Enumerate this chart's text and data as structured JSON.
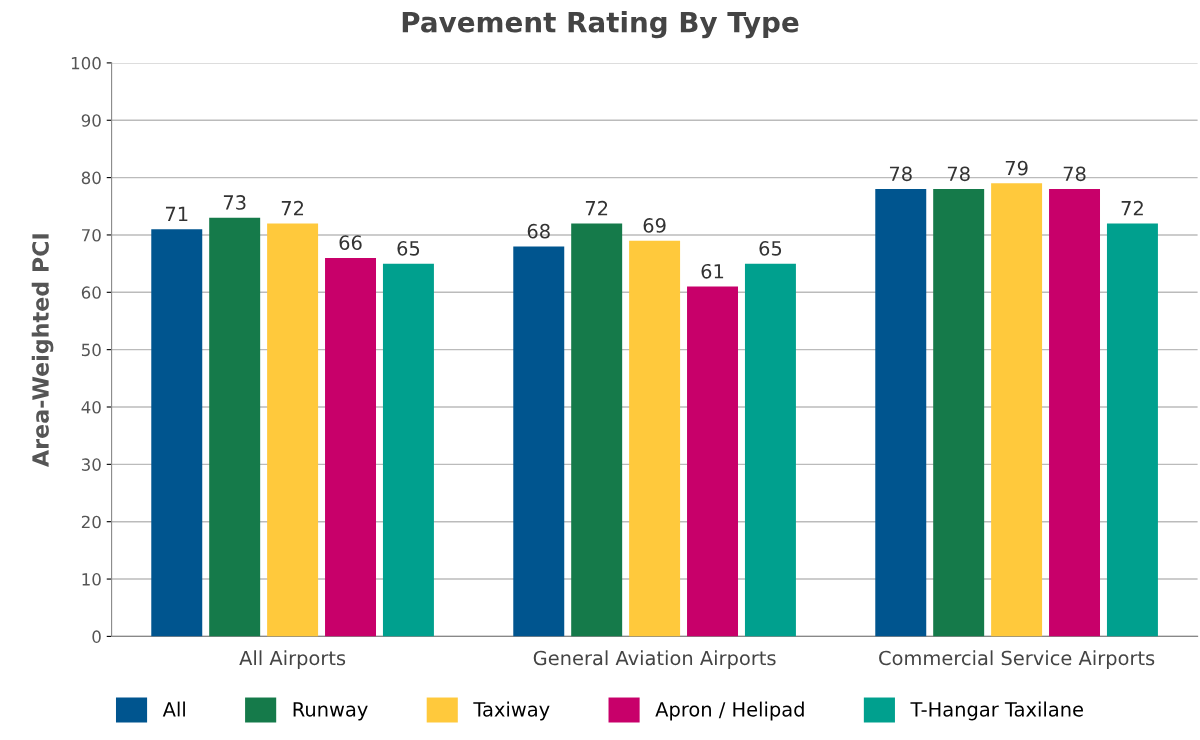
{
  "chart_data": {
    "type": "bar",
    "title": "Pavement Rating By Type",
    "ylabel": "Area-Weighted PCI",
    "categories": [
      "All Airports",
      "General Aviation Airports",
      "Commercial Service Airports"
    ],
    "series": [
      {
        "name": "All",
        "color": "#00558f",
        "values": [
          71,
          68,
          78
        ]
      },
      {
        "name": "Runway",
        "color": "#157a4a",
        "values": [
          73,
          72,
          78
        ]
      },
      {
        "name": "Taxiway",
        "color": "#ffc93c",
        "values": [
          72,
          69,
          79
        ]
      },
      {
        "name": "Apron / Helipad",
        "color": "#c8006a",
        "values": [
          66,
          61,
          78
        ]
      },
      {
        "name": "T-Hangar Taxilane",
        "color": "#00a08e",
        "values": [
          65,
          65,
          72
        ]
      }
    ],
    "ylim": [
      0,
      100
    ],
    "yticks": [
      0,
      10,
      20,
      30,
      40,
      50,
      60,
      70,
      80,
      90,
      100
    ],
    "grid": "y",
    "legend": "bottom",
    "data_labels": true
  }
}
